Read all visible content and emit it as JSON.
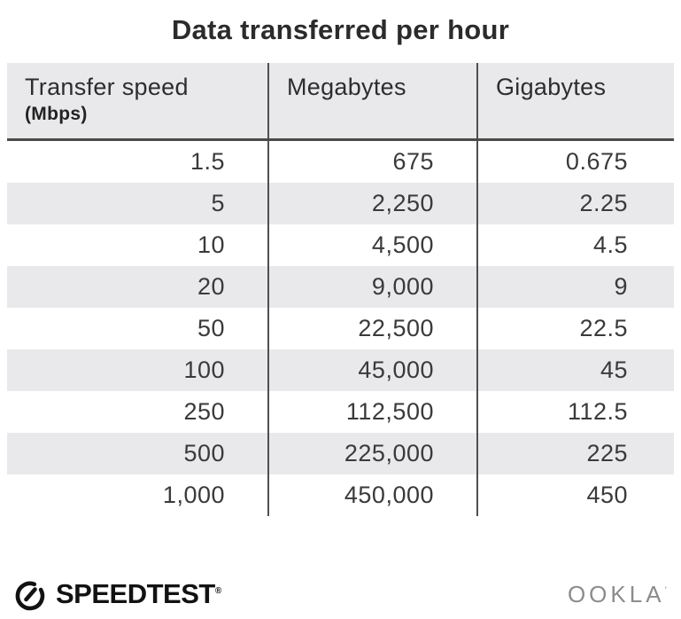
{
  "title": "Data transferred per hour",
  "table": {
    "columns": [
      {
        "label": "Transfer speed",
        "sub": "(Mbps)"
      },
      {
        "label": "Megabytes"
      },
      {
        "label": "Gigabytes"
      }
    ],
    "rows": [
      [
        "1.5",
        "675",
        "0.675"
      ],
      [
        "5",
        "2,250",
        "2.25"
      ],
      [
        "10",
        "4,500",
        "4.5"
      ],
      [
        "20",
        "9,000",
        "9"
      ],
      [
        "50",
        "22,500",
        "22.5"
      ],
      [
        "100",
        "45,000",
        "45"
      ],
      [
        "250",
        "112,500",
        "112.5"
      ],
      [
        "500",
        "225,000",
        "225"
      ],
      [
        "1,000",
        "450,000",
        "450"
      ]
    ]
  },
  "footer": {
    "speedtest_label": "SPEEDTEST",
    "speedtest_reg": "®",
    "ookla_label": "OOKLA",
    "ookla_reg": "’",
    "speedtest_icon": "speedtest-gauge-icon"
  },
  "colors": {
    "title_text": "#2b2b2b",
    "header_bg": "#e9e9ec",
    "alt_row_bg": "#e9e9ec",
    "body_text": "#3a3a3a",
    "divider": "#4f4f4f",
    "speedtest_logo": "#121212",
    "ookla_logo": "#8c8c8c"
  },
  "chart_data": {
    "type": "table",
    "title": "Data transferred per hour",
    "columns": [
      "Transfer speed (Mbps)",
      "Megabytes",
      "Gigabytes"
    ],
    "rows": [
      [
        1.5,
        675,
        0.675
      ],
      [
        5,
        2250,
        2.25
      ],
      [
        10,
        4500,
        4.5
      ],
      [
        20,
        9000,
        9
      ],
      [
        50,
        22500,
        22.5
      ],
      [
        100,
        45000,
        45
      ],
      [
        250,
        112500,
        112.5
      ],
      [
        500,
        225000,
        225
      ],
      [
        1000,
        450000,
        450
      ]
    ],
    "notes": "Rows alternate white and light-gray backgrounds; values right-aligned; branded Speedtest by Ookla infographic"
  }
}
